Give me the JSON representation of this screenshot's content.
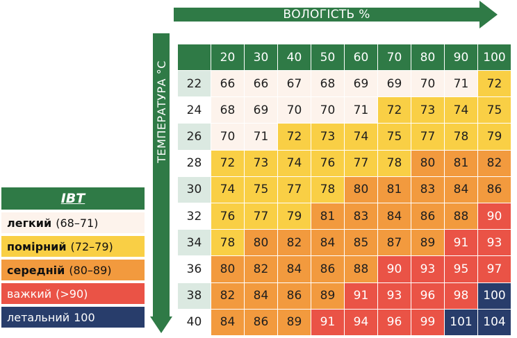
{
  "humidity_label": "ВОЛОГІСТЬ %",
  "temperature_label": "ТЕМПЕРАТУРА °C",
  "colors": {
    "green": "#2f7a46",
    "light": "#fdf3ec",
    "moderate": "#f9cf45",
    "medium": "#f29a3e",
    "severe": "#ea5346",
    "lethal": "#283d6b"
  },
  "legend": {
    "title": "ІВТ",
    "items": [
      {
        "name": "легкий",
        "range": "(68–71)",
        "level": "light"
      },
      {
        "name": "помірний",
        "range": "(72–79)",
        "level": "moderate"
      },
      {
        "name": "середній",
        "range": "(80–89)",
        "level": "medium"
      },
      {
        "name": "важкий",
        "range": "(>90)",
        "level": "severe"
      },
      {
        "name": "летальний",
        "range": "100",
        "level": "lethal"
      }
    ]
  },
  "table": {
    "humidity": [
      "20",
      "30",
      "40",
      "50",
      "60",
      "70",
      "80",
      "90",
      "100"
    ],
    "rows": [
      {
        "temp": "22",
        "values": [
          "66",
          "66",
          "67",
          "68",
          "69",
          "69",
          "70",
          "71",
          "72"
        ],
        "levels": [
          "light",
          "light",
          "light",
          "light",
          "light",
          "light",
          "light",
          "light",
          "moderate"
        ]
      },
      {
        "temp": "24",
        "values": [
          "68",
          "69",
          "70",
          "70",
          "71",
          "72",
          "73",
          "74",
          "75"
        ],
        "levels": [
          "light",
          "light",
          "light",
          "light",
          "light",
          "moderate",
          "moderate",
          "moderate",
          "moderate"
        ]
      },
      {
        "temp": "26",
        "values": [
          "70",
          "71",
          "72",
          "73",
          "74",
          "75",
          "77",
          "78",
          "79"
        ],
        "levels": [
          "light",
          "light",
          "moderate",
          "moderate",
          "moderate",
          "moderate",
          "moderate",
          "moderate",
          "moderate"
        ]
      },
      {
        "temp": "28",
        "values": [
          "72",
          "73",
          "74",
          "76",
          "77",
          "78",
          "80",
          "81",
          "82"
        ],
        "levels": [
          "moderate",
          "moderate",
          "moderate",
          "moderate",
          "moderate",
          "moderate",
          "medium",
          "medium",
          "medium"
        ]
      },
      {
        "temp": "30",
        "values": [
          "74",
          "75",
          "77",
          "78",
          "80",
          "81",
          "83",
          "84",
          "86"
        ],
        "levels": [
          "moderate",
          "moderate",
          "moderate",
          "moderate",
          "medium",
          "medium",
          "medium",
          "medium",
          "medium"
        ]
      },
      {
        "temp": "32",
        "values": [
          "76",
          "77",
          "79",
          "81",
          "83",
          "84",
          "86",
          "88",
          "90"
        ],
        "levels": [
          "moderate",
          "moderate",
          "moderate",
          "medium",
          "medium",
          "medium",
          "medium",
          "medium",
          "severe"
        ]
      },
      {
        "temp": "34",
        "values": [
          "78",
          "80",
          "82",
          "84",
          "85",
          "87",
          "89",
          "91",
          "93"
        ],
        "levels": [
          "moderate",
          "medium",
          "medium",
          "medium",
          "medium",
          "medium",
          "medium",
          "severe",
          "severe"
        ]
      },
      {
        "temp": "36",
        "values": [
          "80",
          "82",
          "84",
          "86",
          "88",
          "90",
          "93",
          "95",
          "97"
        ],
        "levels": [
          "medium",
          "medium",
          "medium",
          "medium",
          "medium",
          "severe",
          "severe",
          "severe",
          "severe"
        ]
      },
      {
        "temp": "38",
        "values": [
          "82",
          "84",
          "86",
          "89",
          "91",
          "93",
          "96",
          "98",
          "100"
        ],
        "levels": [
          "medium",
          "medium",
          "medium",
          "medium",
          "severe",
          "severe",
          "severe",
          "severe",
          "lethal"
        ]
      },
      {
        "temp": "40",
        "values": [
          "84",
          "86",
          "89",
          "91",
          "94",
          "96",
          "99",
          "101",
          "104"
        ],
        "levels": [
          "medium",
          "medium",
          "medium",
          "severe",
          "severe",
          "severe",
          "severe",
          "lethal",
          "lethal"
        ]
      }
    ]
  }
}
